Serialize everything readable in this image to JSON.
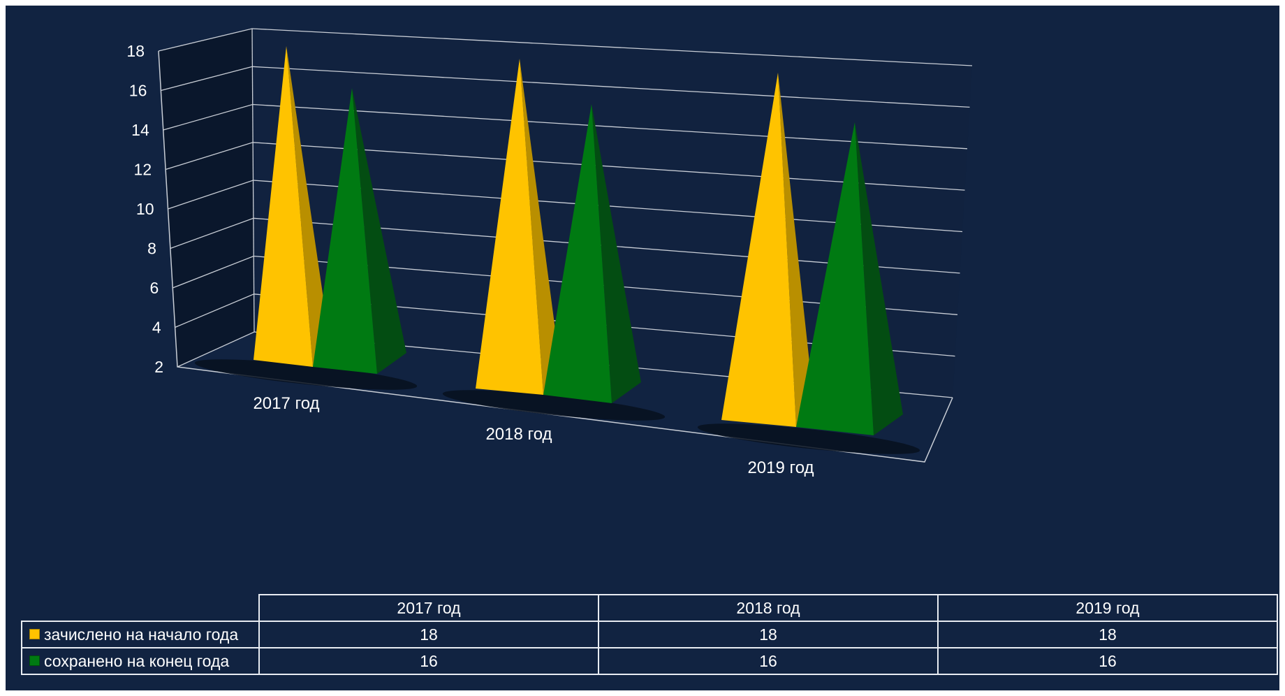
{
  "chart_data": {
    "type": "bar",
    "bar_shape": "pyramid-3d",
    "categories": [
      "2017 год",
      "2018 год",
      "2019 год"
    ],
    "series": [
      {
        "name": "зачислено на начало года",
        "values": [
          18,
          18,
          18
        ],
        "color": "#FFC300"
      },
      {
        "name": "сохранено на конец года",
        "values": [
          16,
          16,
          16
        ],
        "color": "#007A12"
      }
    ],
    "ylim": [
      2,
      18
    ],
    "yticks": [
      "2",
      "4",
      "6",
      "8",
      "10",
      "12",
      "14",
      "16",
      "18"
    ],
    "grid": true,
    "legend": "data-table-below"
  },
  "table": {
    "headers": [
      "2017 год",
      "2018 год",
      "2019 год"
    ],
    "rows": [
      {
        "label": "зачислено на начало года",
        "color": "#FFC300",
        "values": [
          "18",
          "18",
          "18"
        ]
      },
      {
        "label": "сохранено на конец года",
        "color": "#007A12",
        "values": [
          "16",
          "16",
          "16"
        ]
      }
    ]
  },
  "colors": {
    "background": "#112341",
    "back_wall": "#11223f",
    "side_wall": "#0a172c",
    "grid": "#c9ced6"
  }
}
